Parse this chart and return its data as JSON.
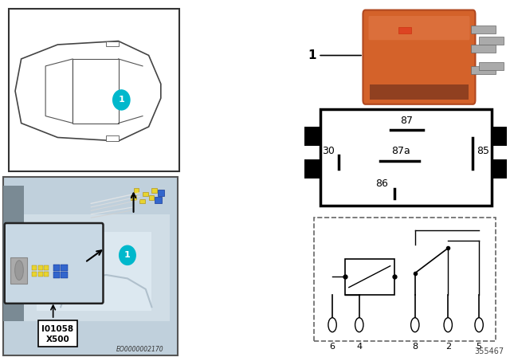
{
  "bg_color": "#ffffff",
  "left_bg": "#b8cdd8",
  "car_box_bg": "#ffffff",
  "photo_bg": "#c0d0dc",
  "inset_bg": "#c8d8e4",
  "relay_orange": "#d4622a",
  "relay_dark": "#b04820",
  "relay_highlight": "#e07848",
  "pin_gray": "#888888",
  "connector_black": "#111111",
  "cyan_color": "#00b8cc",
  "yellow_connector": "#e8d430",
  "blue_connector": "#3366cc",
  "bottom_code": "EO0000002170",
  "part_number": "355467",
  "pin_labels_top": [
    "6",
    "4",
    "8",
    "2",
    "5"
  ],
  "pin_labels_bot": [
    "30",
    "85",
    "86",
    "87",
    "87a"
  ]
}
